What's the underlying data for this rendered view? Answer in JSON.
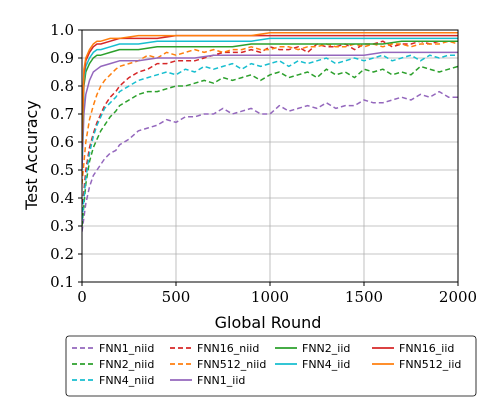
{
  "chart_data": {
    "type": "line",
    "xlabel": "Global Round",
    "ylabel": "Test Accuracy",
    "xlim": [
      0,
      2000
    ],
    "ylim": [
      0.1,
      1.0
    ],
    "xticks": [
      0,
      500,
      1000,
      1500,
      2000
    ],
    "xtick_labels": [
      "0",
      "500",
      "1000",
      "1500",
      "2000"
    ],
    "yticks": [
      0.1,
      0.2,
      0.3,
      0.4,
      0.5,
      0.6,
      0.7,
      0.8,
      0.9,
      1.0
    ],
    "ytick_labels": [
      "0.1",
      "0.2",
      "0.3",
      "0.4",
      "0.5",
      "0.6",
      "0.7",
      "0.8",
      "0.9",
      "1.0"
    ],
    "grid": true,
    "legend_position": "bottom-outside",
    "series": [
      {
        "name": "FNN1_niid",
        "color": "#9467bd",
        "dash": "dashed",
        "x": [
          0,
          20,
          40,
          60,
          80,
          100,
          120,
          150,
          180,
          200,
          250,
          300,
          350,
          400,
          450,
          500,
          550,
          600,
          650,
          700,
          750,
          800,
          850,
          900,
          950,
          1000,
          1050,
          1100,
          1150,
          1200,
          1250,
          1300,
          1350,
          1400,
          1450,
          1500,
          1550,
          1600,
          1650,
          1700,
          1750,
          1800,
          1850,
          1900,
          1950,
          2000
        ],
        "y": [
          0.28,
          0.38,
          0.44,
          0.48,
          0.5,
          0.52,
          0.54,
          0.56,
          0.57,
          0.59,
          0.61,
          0.64,
          0.65,
          0.66,
          0.68,
          0.67,
          0.69,
          0.69,
          0.7,
          0.7,
          0.72,
          0.7,
          0.71,
          0.72,
          0.7,
          0.7,
          0.73,
          0.71,
          0.72,
          0.73,
          0.72,
          0.74,
          0.72,
          0.73,
          0.73,
          0.75,
          0.74,
          0.74,
          0.75,
          0.76,
          0.75,
          0.77,
          0.76,
          0.78,
          0.76,
          0.76
        ]
      },
      {
        "name": "FNN16_niid",
        "color": "#d62728",
        "dash": "dashed",
        "x": [
          0,
          20,
          40,
          60,
          80,
          100,
          120,
          150,
          180,
          200,
          250,
          300,
          350,
          400,
          450,
          500,
          550,
          600,
          650,
          700,
          750,
          800,
          850,
          900,
          950,
          1000,
          1050,
          1100,
          1150,
          1200,
          1250,
          1300,
          1350,
          1400,
          1450,
          1500,
          1550,
          1600,
          1650,
          1700,
          1750,
          1800,
          1850,
          1900,
          1950,
          2000
        ],
        "y": [
          0.35,
          0.5,
          0.58,
          0.63,
          0.67,
          0.7,
          0.73,
          0.76,
          0.78,
          0.8,
          0.83,
          0.85,
          0.86,
          0.88,
          0.88,
          0.89,
          0.89,
          0.89,
          0.9,
          0.91,
          0.92,
          0.92,
          0.92,
          0.93,
          0.92,
          0.94,
          0.93,
          0.93,
          0.94,
          0.92,
          0.95,
          0.94,
          0.94,
          0.95,
          0.93,
          0.95,
          0.95,
          0.96,
          0.94,
          0.95,
          0.95,
          0.96,
          0.95,
          0.96,
          0.96,
          0.96
        ]
      },
      {
        "name": "FNN2_niid",
        "color": "#2ca02c",
        "dash": "dashed",
        "x": [
          0,
          20,
          40,
          60,
          80,
          100,
          120,
          150,
          180,
          200,
          250,
          300,
          350,
          400,
          450,
          500,
          550,
          600,
          650,
          700,
          750,
          800,
          850,
          900,
          950,
          1000,
          1050,
          1100,
          1150,
          1200,
          1250,
          1300,
          1350,
          1400,
          1450,
          1500,
          1550,
          1600,
          1650,
          1700,
          1750,
          1800,
          1850,
          1900,
          1950,
          2000
        ],
        "y": [
          0.3,
          0.45,
          0.53,
          0.58,
          0.61,
          0.64,
          0.66,
          0.69,
          0.71,
          0.73,
          0.75,
          0.77,
          0.78,
          0.78,
          0.79,
          0.8,
          0.8,
          0.81,
          0.82,
          0.81,
          0.83,
          0.82,
          0.83,
          0.84,
          0.82,
          0.84,
          0.85,
          0.83,
          0.84,
          0.85,
          0.83,
          0.86,
          0.84,
          0.85,
          0.83,
          0.86,
          0.85,
          0.86,
          0.84,
          0.85,
          0.84,
          0.87,
          0.86,
          0.85,
          0.86,
          0.87
        ]
      },
      {
        "name": "FNN512_niid",
        "color": "#ff7f0e",
        "dash": "dashed",
        "x": [
          0,
          20,
          40,
          60,
          80,
          100,
          120,
          150,
          180,
          200,
          250,
          300,
          350,
          400,
          450,
          500,
          550,
          600,
          650,
          700,
          750,
          800,
          850,
          900,
          950,
          1000,
          1050,
          1100,
          1150,
          1200,
          1250,
          1300,
          1350,
          1400,
          1450,
          1500,
          1550,
          1600,
          1650,
          1700,
          1750,
          1800,
          1850,
          1900,
          1950,
          2000
        ],
        "y": [
          0.45,
          0.6,
          0.68,
          0.73,
          0.77,
          0.8,
          0.82,
          0.84,
          0.86,
          0.87,
          0.88,
          0.89,
          0.91,
          0.9,
          0.92,
          0.91,
          0.92,
          0.93,
          0.92,
          0.93,
          0.92,
          0.93,
          0.93,
          0.94,
          0.93,
          0.93,
          0.94,
          0.94,
          0.93,
          0.94,
          0.94,
          0.95,
          0.94,
          0.94,
          0.95,
          0.94,
          0.95,
          0.94,
          0.95,
          0.95,
          0.94,
          0.95,
          0.95,
          0.95,
          0.96,
          0.95
        ]
      },
      {
        "name": "FNN4_niid",
        "color": "#17becf",
        "dash": "dashed",
        "x": [
          0,
          20,
          40,
          60,
          80,
          100,
          120,
          150,
          180,
          200,
          250,
          300,
          350,
          400,
          450,
          500,
          550,
          600,
          650,
          700,
          750,
          800,
          850,
          900,
          950,
          1000,
          1050,
          1100,
          1150,
          1200,
          1250,
          1300,
          1350,
          1400,
          1450,
          1500,
          1550,
          1600,
          1650,
          1700,
          1750,
          1800,
          1850,
          1900,
          1950,
          2000
        ],
        "y": [
          0.32,
          0.47,
          0.56,
          0.62,
          0.66,
          0.69,
          0.72,
          0.74,
          0.76,
          0.78,
          0.8,
          0.82,
          0.83,
          0.84,
          0.85,
          0.84,
          0.86,
          0.85,
          0.87,
          0.86,
          0.87,
          0.88,
          0.86,
          0.88,
          0.87,
          0.88,
          0.89,
          0.87,
          0.89,
          0.88,
          0.89,
          0.9,
          0.88,
          0.89,
          0.9,
          0.89,
          0.9,
          0.91,
          0.89,
          0.9,
          0.91,
          0.89,
          0.91,
          0.9,
          0.91,
          0.91
        ]
      },
      {
        "name": "FNN1_iid",
        "color": "#9467bd",
        "dash": "solid",
        "x": [
          0,
          10,
          20,
          40,
          60,
          80,
          100,
          150,
          200,
          300,
          400,
          500,
          600,
          700,
          800,
          900,
          1000,
          1100,
          1200,
          1300,
          1400,
          1500,
          1600,
          1700,
          1800,
          1900,
          2000
        ],
        "y": [
          0.5,
          0.7,
          0.77,
          0.82,
          0.85,
          0.86,
          0.87,
          0.88,
          0.89,
          0.89,
          0.9,
          0.9,
          0.9,
          0.91,
          0.91,
          0.91,
          0.91,
          0.91,
          0.91,
          0.91,
          0.91,
          0.91,
          0.92,
          0.92,
          0.92,
          0.92,
          0.92
        ]
      },
      {
        "name": "FNN2_iid",
        "color": "#2ca02c",
        "dash": "solid",
        "x": [
          0,
          10,
          20,
          40,
          60,
          80,
          100,
          150,
          200,
          300,
          400,
          500,
          600,
          700,
          800,
          900,
          1000,
          1100,
          1200,
          1300,
          1400,
          1500,
          1600,
          1700,
          1800,
          1900,
          2000
        ],
        "y": [
          0.55,
          0.8,
          0.85,
          0.88,
          0.9,
          0.91,
          0.91,
          0.92,
          0.93,
          0.93,
          0.94,
          0.94,
          0.94,
          0.94,
          0.94,
          0.95,
          0.95,
          0.95,
          0.95,
          0.95,
          0.95,
          0.95,
          0.95,
          0.96,
          0.96,
          0.96,
          0.96
        ]
      },
      {
        "name": "FNN4_iid",
        "color": "#17becf",
        "dash": "solid",
        "x": [
          0,
          10,
          20,
          40,
          60,
          80,
          100,
          150,
          200,
          300,
          400,
          500,
          600,
          700,
          800,
          900,
          1000,
          1100,
          1200,
          1300,
          1400,
          1500,
          1600,
          1700,
          1800,
          1900,
          2000
        ],
        "y": [
          0.55,
          0.82,
          0.87,
          0.9,
          0.92,
          0.93,
          0.93,
          0.94,
          0.95,
          0.95,
          0.96,
          0.96,
          0.96,
          0.96,
          0.96,
          0.96,
          0.97,
          0.97,
          0.97,
          0.97,
          0.97,
          0.97,
          0.97,
          0.97,
          0.97,
          0.97,
          0.97
        ]
      },
      {
        "name": "FNN16_iid",
        "color": "#d62728",
        "dash": "solid",
        "x": [
          0,
          10,
          20,
          40,
          60,
          80,
          100,
          150,
          200,
          300,
          400,
          500,
          600,
          700,
          800,
          900,
          1000,
          1100,
          1200,
          1300,
          1400,
          1500,
          1600,
          1700,
          1800,
          1900,
          2000
        ],
        "y": [
          0.58,
          0.84,
          0.89,
          0.92,
          0.94,
          0.95,
          0.95,
          0.96,
          0.97,
          0.97,
          0.97,
          0.98,
          0.98,
          0.98,
          0.98,
          0.98,
          0.98,
          0.98,
          0.98,
          0.98,
          0.98,
          0.98,
          0.98,
          0.98,
          0.98,
          0.98,
          0.98
        ]
      },
      {
        "name": "FNN512_iid",
        "color": "#ff7f0e",
        "dash": "solid",
        "x": [
          0,
          10,
          20,
          40,
          60,
          80,
          100,
          150,
          200,
          300,
          400,
          500,
          600,
          700,
          800,
          900,
          1000,
          1100,
          1200,
          1300,
          1400,
          1500,
          1600,
          1700,
          1800,
          1900,
          2000
        ],
        "y": [
          0.6,
          0.86,
          0.9,
          0.93,
          0.95,
          0.96,
          0.96,
          0.97,
          0.97,
          0.98,
          0.98,
          0.98,
          0.98,
          0.98,
          0.98,
          0.98,
          0.99,
          0.99,
          0.99,
          0.99,
          0.99,
          0.99,
          0.99,
          0.99,
          0.99,
          0.99,
          0.99
        ]
      }
    ],
    "legend_order": [
      "FNN1_niid",
      "FNN16_niid",
      "FNN2_iid",
      "FNN16_iid",
      "FNN2_niid",
      "FNN512_niid",
      "FNN4_iid",
      "FNN512_iid",
      "FNN4_niid",
      "FNN1_iid"
    ]
  }
}
